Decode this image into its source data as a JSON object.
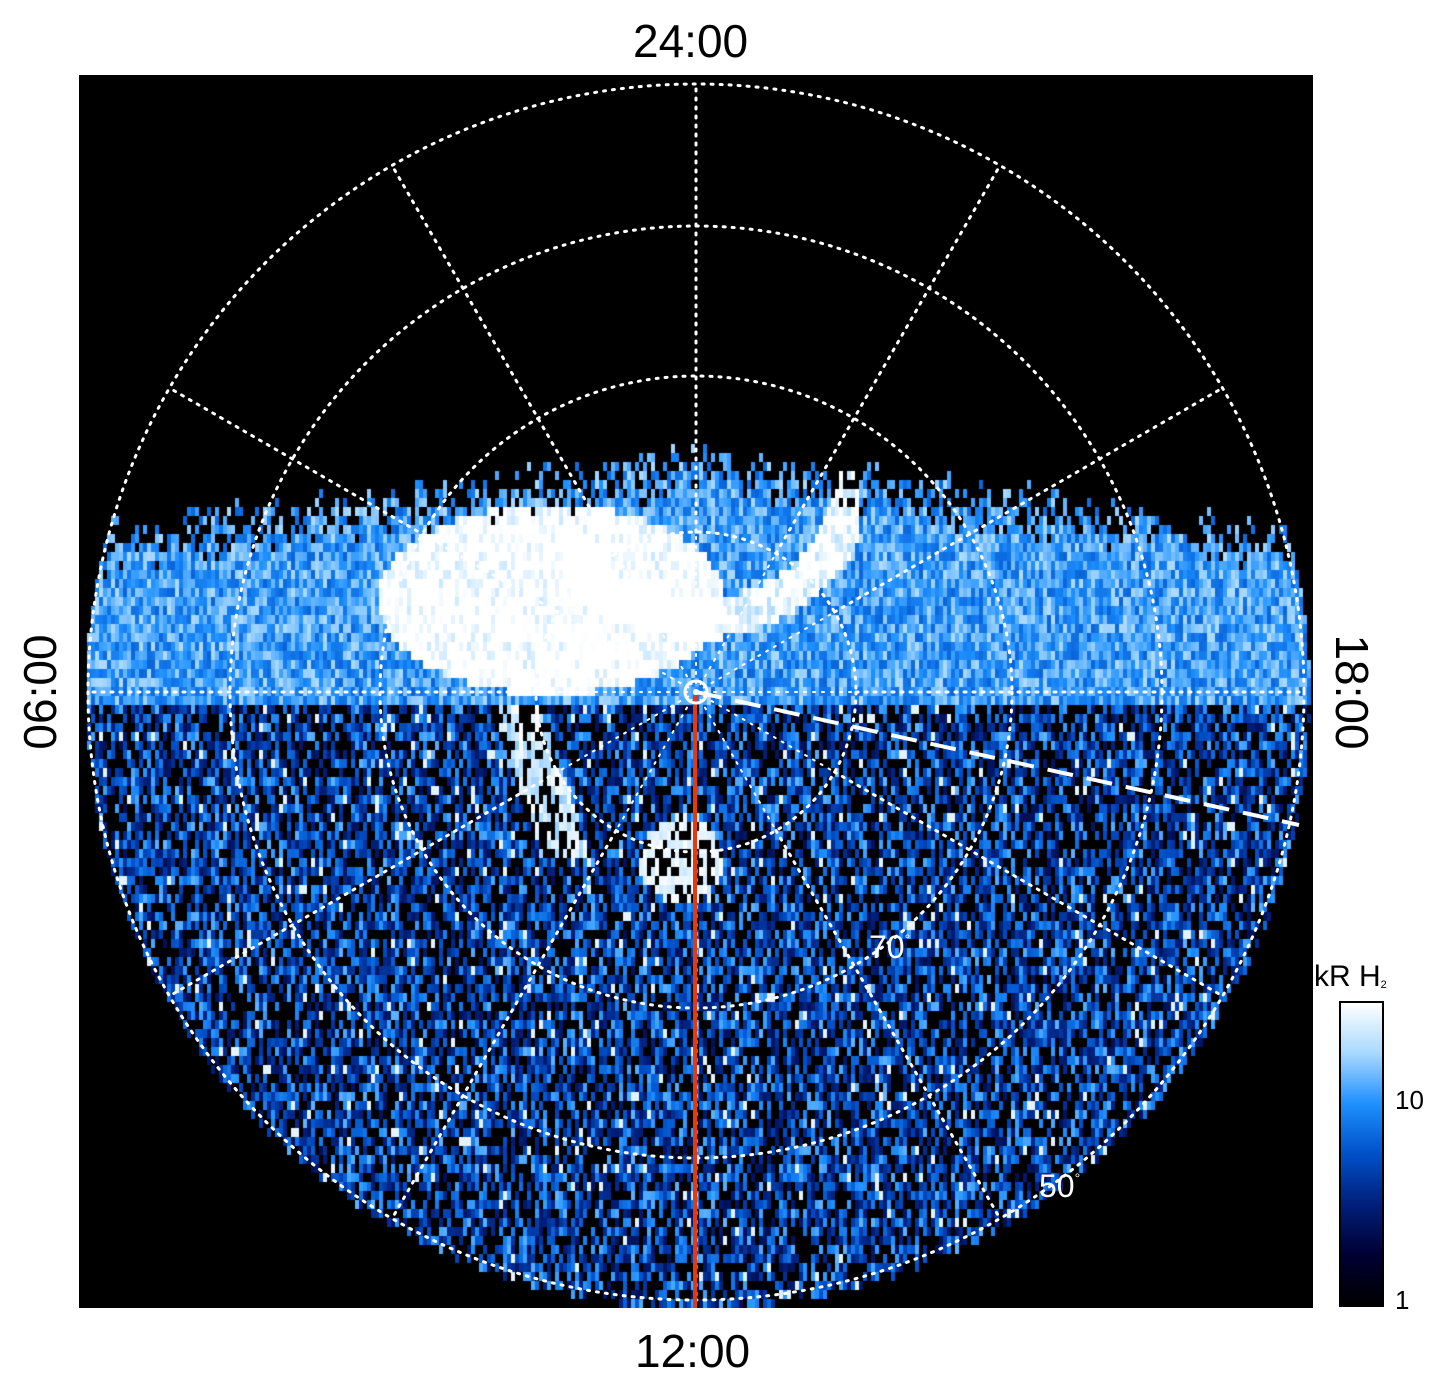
{
  "local_time_labels": {
    "top": "24:00",
    "bottom": "12:00",
    "left": "06:00",
    "right": "18:00"
  },
  "latitude_labels": [
    {
      "value": "70",
      "unit": "°"
    },
    {
      "value": "50",
      "unit": "°"
    }
  ],
  "colorbar": {
    "unit_main": "kR H",
    "unit_sub": "2",
    "tick_labels": [
      "10",
      "1"
    ],
    "scale": "log",
    "range_kR": [
      1,
      30
    ],
    "colors": [
      "#000000",
      "#000033",
      "#001f7a",
      "#0050c8",
      "#1e90ff",
      "#a8d8ff",
      "#ffffff"
    ]
  },
  "colors": {
    "background": "#000000",
    "grid": "#ffffff",
    "meridian_line": "#e8380d",
    "page": "#ffffff"
  }
}
